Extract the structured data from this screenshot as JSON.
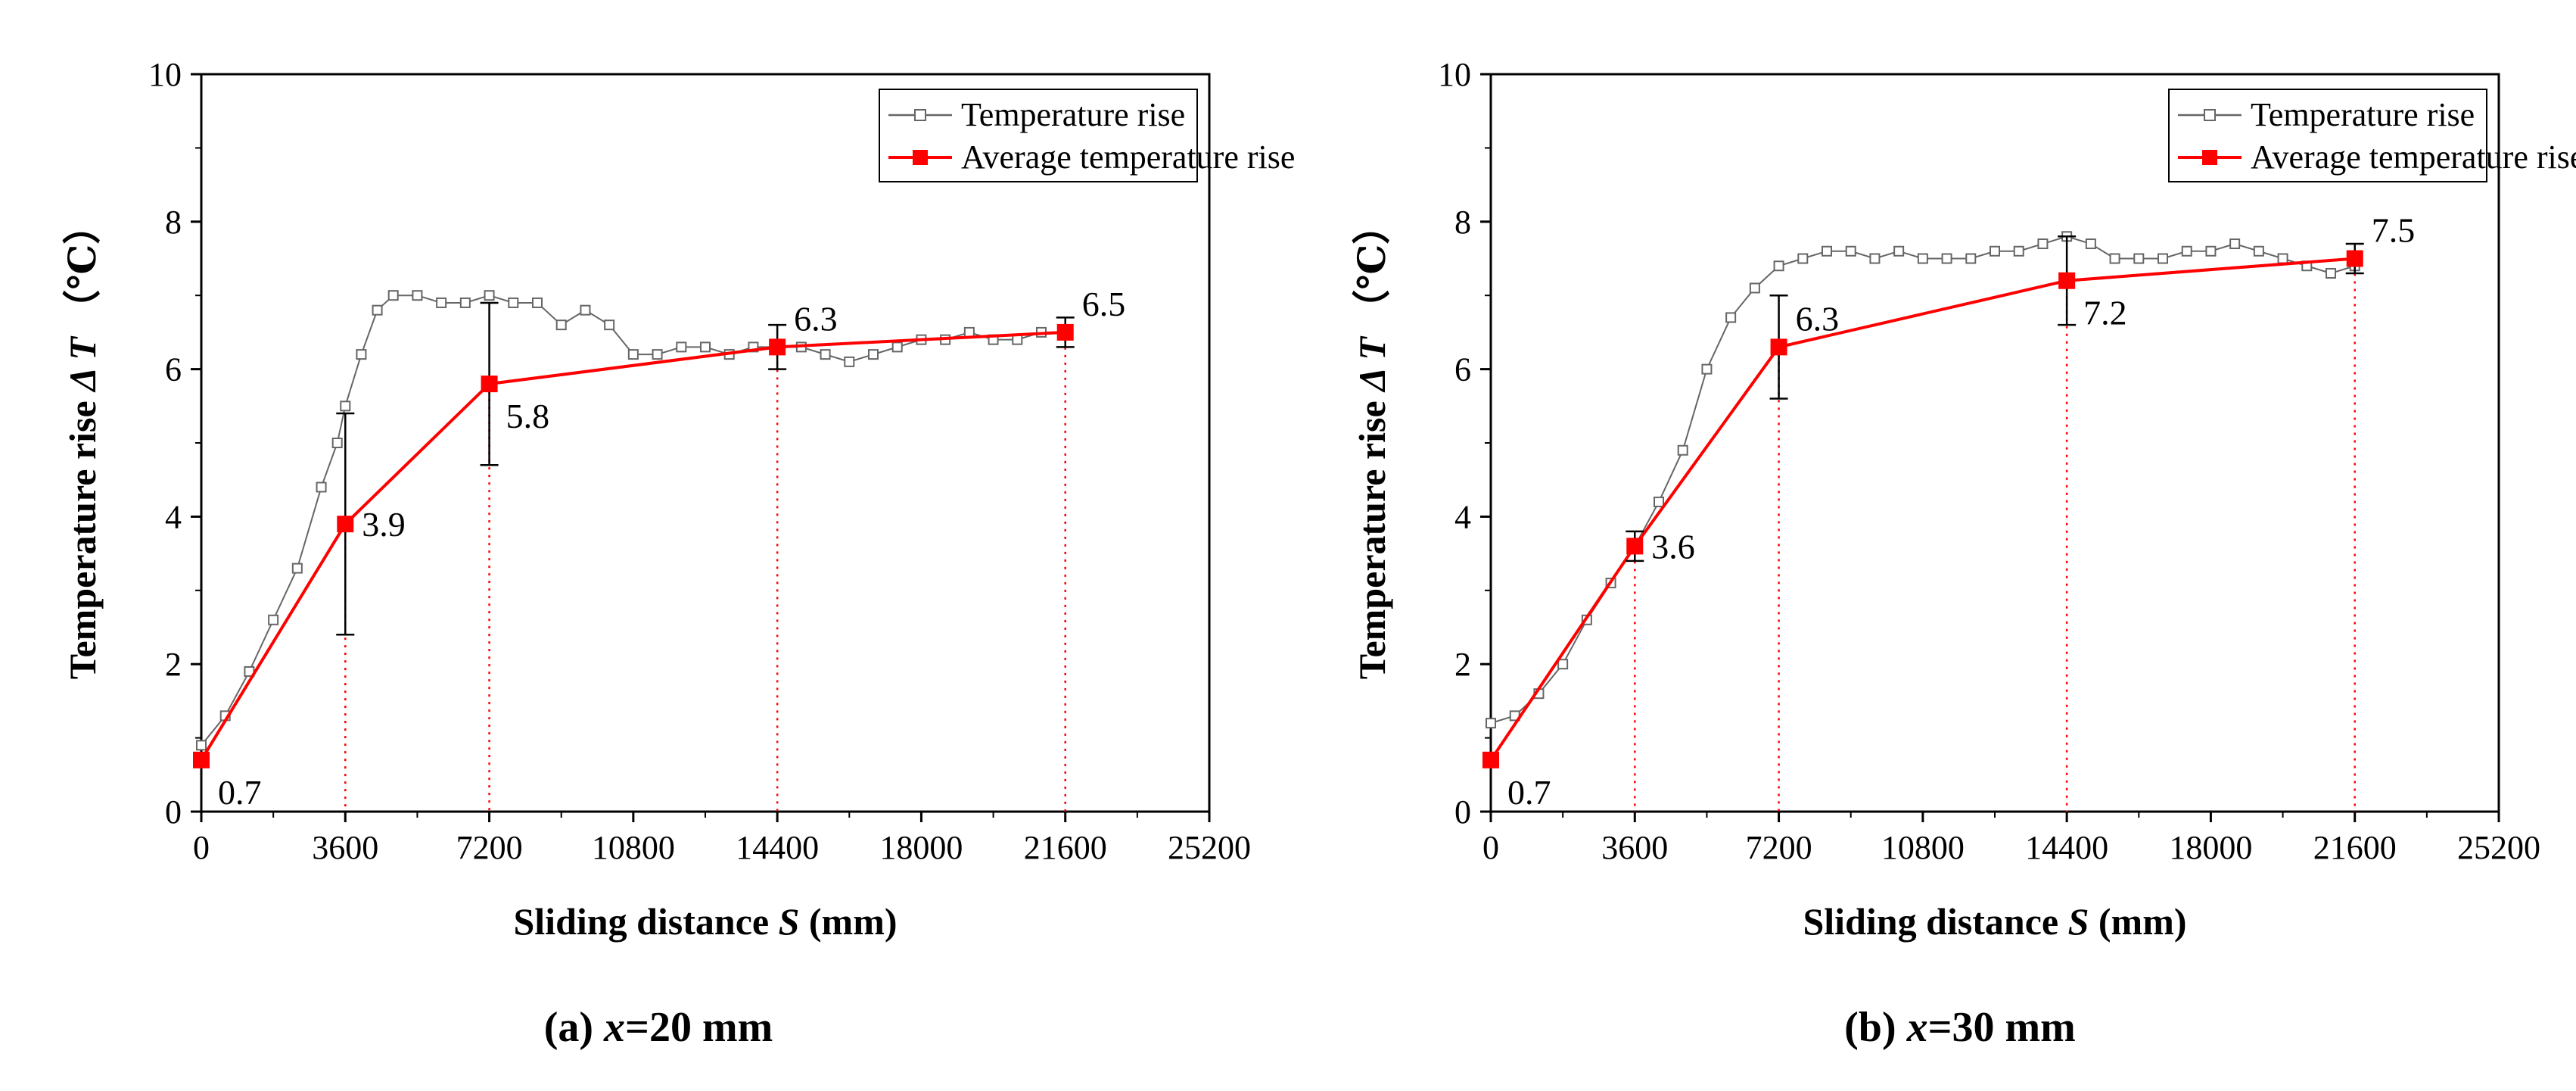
{
  "chart_data": [
    {
      "type": "line",
      "caption": "(a) x=20 mm",
      "caption_parts": [
        "(a) ",
        "x",
        "=20 mm"
      ],
      "xlabel_parts": [
        "Sliding distance ",
        "S",
        " (mm)"
      ],
      "ylabel_parts": [
        "Temperature rise ",
        "Δ T",
        " （℃）"
      ],
      "xlim": [
        0,
        25200
      ],
      "ylim": [
        0,
        10
      ],
      "xticks": [
        0,
        3600,
        7200,
        10800,
        14400,
        18000,
        21600,
        25200
      ],
      "yticks": [
        0,
        2,
        4,
        6,
        8,
        10
      ],
      "legend": {
        "position": "top-right",
        "entries": [
          "Temperature rise",
          "Average temperature rise"
        ]
      },
      "series": [
        {
          "name": "Temperature rise",
          "color": "#666666",
          "marker": "open-square",
          "x": [
            0,
            600,
            1200,
            1800,
            2400,
            3000,
            3400,
            3600,
            4000,
            4400,
            4800,
            5400,
            6000,
            6600,
            7200,
            7800,
            8400,
            9000,
            9600,
            10200,
            10800,
            11400,
            12000,
            12600,
            13200,
            13800,
            14400,
            15000,
            15600,
            16200,
            16800,
            17400,
            18000,
            18600,
            19200,
            19800,
            20400,
            21000,
            21600
          ],
          "y": [
            0.9,
            1.3,
            1.9,
            2.6,
            3.3,
            4.4,
            5.0,
            5.5,
            6.2,
            6.8,
            7.0,
            7.0,
            6.9,
            6.9,
            7.0,
            6.9,
            6.9,
            6.6,
            6.8,
            6.6,
            6.2,
            6.2,
            6.3,
            6.3,
            6.2,
            6.3,
            6.3,
            6.3,
            6.2,
            6.1,
            6.2,
            6.3,
            6.4,
            6.4,
            6.5,
            6.4,
            6.4,
            6.5,
            6.5
          ]
        },
        {
          "name": "Average temperature rise",
          "color": "#ff0000",
          "marker": "filled-square",
          "x": [
            0,
            3600,
            7200,
            14400,
            21600
          ],
          "y": [
            0.7,
            3.9,
            5.8,
            6.3,
            6.5
          ],
          "error": [
            0.0,
            1.5,
            1.1,
            0.3,
            0.2
          ],
          "labels": [
            "0.7",
            "3.9",
            "5.8",
            "6.3",
            "6.5"
          ],
          "label_side": [
            "right-below",
            "right",
            "right-below",
            "right-above",
            "right-above"
          ]
        }
      ]
    },
    {
      "type": "line",
      "caption": "(b) x=30 mm",
      "caption_parts": [
        "(b) ",
        "x",
        "=30 mm"
      ],
      "xlabel_parts": [
        "Sliding distance ",
        "S",
        " (mm)"
      ],
      "ylabel_parts": [
        "Temperature rise ",
        "Δ T",
        " （℃）"
      ],
      "xlim": [
        0,
        25200
      ],
      "ylim": [
        0,
        10
      ],
      "xticks": [
        0,
        3600,
        7200,
        10800,
        14400,
        18000,
        21600,
        25200
      ],
      "yticks": [
        0,
        2,
        4,
        6,
        8,
        10
      ],
      "legend": {
        "position": "top-right",
        "entries": [
          "Temperature rise",
          "Average temperature rise"
        ]
      },
      "series": [
        {
          "name": "Temperature rise",
          "color": "#666666",
          "marker": "open-square",
          "x": [
            0,
            600,
            1200,
            1800,
            2400,
            3000,
            3600,
            4200,
            4800,
            5400,
            6000,
            6600,
            7200,
            7800,
            8400,
            9000,
            9600,
            10200,
            10800,
            11400,
            12000,
            12600,
            13200,
            13800,
            14400,
            15000,
            15600,
            16200,
            16800,
            17400,
            18000,
            18600,
            19200,
            19800,
            20400,
            21000,
            21600
          ],
          "y": [
            1.2,
            1.3,
            1.6,
            2.0,
            2.6,
            3.1,
            3.6,
            4.2,
            4.9,
            6.0,
            6.7,
            7.1,
            7.4,
            7.5,
            7.6,
            7.6,
            7.5,
            7.6,
            7.5,
            7.5,
            7.5,
            7.6,
            7.6,
            7.7,
            7.8,
            7.7,
            7.5,
            7.5,
            7.5,
            7.6,
            7.6,
            7.7,
            7.6,
            7.5,
            7.4,
            7.3,
            7.4
          ]
        },
        {
          "name": "Average temperature rise",
          "color": "#ff0000",
          "marker": "filled-square",
          "x": [
            0,
            3600,
            7200,
            14400,
            21600
          ],
          "y": [
            0.7,
            3.6,
            6.3,
            7.2,
            7.5
          ],
          "error": [
            0.0,
            0.2,
            0.7,
            0.6,
            0.2
          ],
          "labels": [
            "0.7",
            "3.6",
            "6.3",
            "7.2",
            "7.5"
          ],
          "label_side": [
            "right-below",
            "right",
            "right-above",
            "right-below",
            "right-above"
          ]
        }
      ]
    }
  ]
}
